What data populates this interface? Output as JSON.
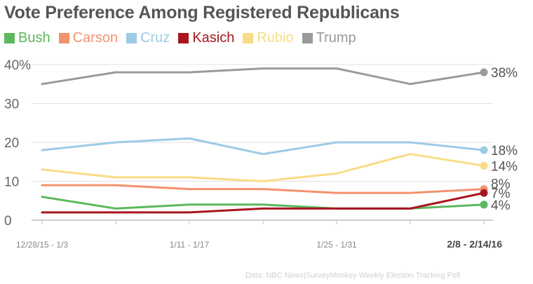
{
  "source_note": "Data: NBC News|SurveyMonkey Weekly Election Tracking Poll",
  "chart_data": {
    "type": "line",
    "title": "Vote Preference Among Registered Republicans",
    "categories": [
      "12/28/15 - 1/3",
      "",
      "1/11 - 1/17",
      "",
      "1/25 - 1/31",
      "",
      "2/8 - 2/14/16"
    ],
    "xlabel": "",
    "ylabel": "",
    "ylim": [
      0,
      40
    ],
    "yticks": [
      "0",
      "10",
      "20",
      "30",
      "40%"
    ],
    "grid": true,
    "legend_position": "top-left",
    "series": [
      {
        "name": "Bush",
        "color": "#5cb85c",
        "values": [
          6,
          3,
          4,
          4,
          3,
          3,
          4
        ],
        "end_label": "4%"
      },
      {
        "name": "Carson",
        "color": "#f4926e",
        "values": [
          9,
          9,
          8,
          8,
          7,
          7,
          8
        ],
        "end_label": "8%"
      },
      {
        "name": "Cruz",
        "color": "#9ccbe4",
        "values": [
          18,
          20,
          21,
          17,
          20,
          20,
          18
        ],
        "end_label": "18%"
      },
      {
        "name": "Kasich",
        "color": "#a7161f",
        "values": [
          2,
          2,
          2,
          3,
          3,
          3,
          7
        ],
        "end_label": "7%"
      },
      {
        "name": "Rubio",
        "color": "#f8dc86",
        "values": [
          13,
          11,
          11,
          10,
          12,
          17,
          14
        ],
        "end_label": "14%"
      },
      {
        "name": "Trump",
        "color": "#9a9a9a",
        "values": [
          35,
          38,
          38,
          39,
          39,
          35,
          38
        ],
        "end_label": "38%"
      }
    ]
  }
}
